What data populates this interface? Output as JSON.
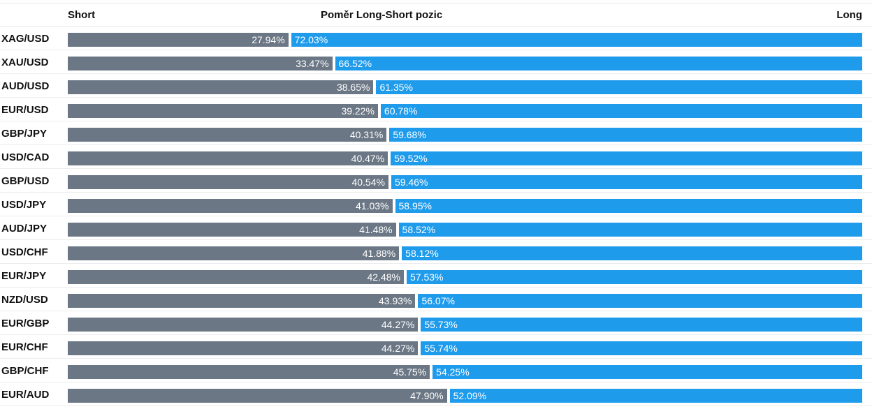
{
  "header": {
    "short_label": "Short",
    "title": "Poměr Long-Short pozic",
    "long_label": "Long"
  },
  "colors": {
    "short": "#6b7785",
    "long": "#1f9bec"
  },
  "chart_data": {
    "type": "bar",
    "orientation": "horizontal",
    "stacked": true,
    "title": "Poměr Long-Short pozic",
    "xlim": [
      0,
      100
    ],
    "categories": [
      "XAG/USD",
      "XAU/USD",
      "AUD/USD",
      "EUR/USD",
      "GBP/JPY",
      "USD/CAD",
      "GBP/USD",
      "USD/JPY",
      "AUD/JPY",
      "USD/CHF",
      "EUR/JPY",
      "NZD/USD",
      "EUR/GBP",
      "EUR/CHF",
      "GBP/CHF",
      "EUR/AUD"
    ],
    "series": [
      {
        "name": "Short",
        "values": [
          27.94,
          33.47,
          38.65,
          39.22,
          40.31,
          40.47,
          40.54,
          41.03,
          41.48,
          41.88,
          42.48,
          43.93,
          44.27,
          44.27,
          45.75,
          47.9
        ],
        "labels": [
          "27.94%",
          "33.47%",
          "38.65%",
          "39.22%",
          "40.31%",
          "40.47%",
          "40.54%",
          "41.03%",
          "41.48%",
          "41.88%",
          "42.48%",
          "43.93%",
          "44.27%",
          "44.27%",
          "45.75%",
          "47.90%"
        ]
      },
      {
        "name": "Long",
        "values": [
          72.03,
          66.52,
          61.35,
          60.78,
          59.68,
          59.52,
          59.46,
          58.95,
          58.52,
          58.12,
          57.53,
          56.07,
          55.73,
          55.74,
          54.25,
          52.09
        ],
        "labels": [
          "72.03%",
          "66.52%",
          "61.35%",
          "60.78%",
          "59.68%",
          "59.52%",
          "59.46%",
          "58.95%",
          "58.52%",
          "58.12%",
          "57.53%",
          "56.07%",
          "55.73%",
          "55.74%",
          "54.25%",
          "52.09%"
        ]
      }
    ]
  }
}
